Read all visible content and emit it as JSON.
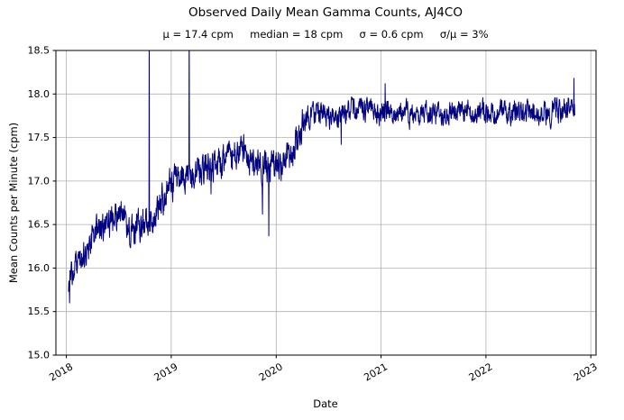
{
  "figure": {
    "title": "Observed Daily Mean Gamma Counts, AJ4CO",
    "subtitle": "μ = 17.4 cpm     median = 18 cpm     σ = 0.6 cpm     σ/μ = 3%"
  },
  "chart_data": {
    "type": "line",
    "title": "Observed Daily Mean Gamma Counts, AJ4CO",
    "subtitle": "μ = 17.4 cpm     median = 18 cpm     σ = 0.6 cpm     σ/μ = 3%",
    "stats": {
      "mu_cpm": 17.4,
      "median_cpm": 18,
      "sigma_cpm": 0.6,
      "sigma_over_mu_pct": 3
    },
    "xlabel": "Date",
    "ylabel": "Mean Counts per Minute (cpm)",
    "xlim": [
      2017.9,
      2023.05
    ],
    "ylim": [
      15.0,
      18.5
    ],
    "x_ticks": [
      2018,
      2019,
      2020,
      2021,
      2022,
      2023
    ],
    "y_ticks": [
      15.0,
      15.5,
      16.0,
      16.5,
      17.0,
      17.5,
      18.0,
      18.5
    ],
    "grid": true,
    "legend": "none",
    "line_color": "#000080",
    "grid_color": "#b0b0b0",
    "x_start": 2018.02,
    "x_end": 2022.85,
    "points_per_year": 365,
    "noise_sigma_early": 0.1,
    "noise_sigma_late": 0.075,
    "noise_change_x": 2020.3,
    "trend": [
      [
        2018.02,
        15.82
      ],
      [
        2018.05,
        15.95
      ],
      [
        2018.08,
        16.02
      ],
      [
        2018.12,
        16.07
      ],
      [
        2018.16,
        16.12
      ],
      [
        2018.2,
        16.23
      ],
      [
        2018.25,
        16.34
      ],
      [
        2018.3,
        16.42
      ],
      [
        2018.35,
        16.4
      ],
      [
        2018.4,
        16.5
      ],
      [
        2018.45,
        16.58
      ],
      [
        2018.5,
        16.65
      ],
      [
        2018.55,
        16.55
      ],
      [
        2018.6,
        16.38
      ],
      [
        2018.65,
        16.42
      ],
      [
        2018.7,
        16.45
      ],
      [
        2018.75,
        16.52
      ],
      [
        2018.8,
        16.57
      ],
      [
        2018.85,
        16.63
      ],
      [
        2018.9,
        16.74
      ],
      [
        2018.95,
        16.88
      ],
      [
        2019.0,
        16.95
      ],
      [
        2019.05,
        17.0
      ],
      [
        2019.1,
        17.02
      ],
      [
        2019.15,
        17.04
      ],
      [
        2019.2,
        17.06
      ],
      [
        2019.25,
        17.1
      ],
      [
        2019.3,
        17.14
      ],
      [
        2019.35,
        17.15
      ],
      [
        2019.4,
        17.16
      ],
      [
        2019.45,
        17.2
      ],
      [
        2019.5,
        17.21
      ],
      [
        2019.55,
        17.25
      ],
      [
        2019.6,
        17.3
      ],
      [
        2019.65,
        17.36
      ],
      [
        2019.7,
        17.3
      ],
      [
        2019.75,
        17.22
      ],
      [
        2019.8,
        17.18
      ],
      [
        2019.85,
        17.2
      ],
      [
        2019.9,
        17.16
      ],
      [
        2019.95,
        17.2
      ],
      [
        2020.0,
        17.2
      ],
      [
        2020.05,
        17.16
      ],
      [
        2020.1,
        17.24
      ],
      [
        2020.15,
        17.32
      ],
      [
        2020.2,
        17.45
      ],
      [
        2020.25,
        17.65
      ],
      [
        2020.3,
        17.74
      ],
      [
        2020.4,
        17.78
      ],
      [
        2020.5,
        17.77
      ],
      [
        2020.6,
        17.76
      ],
      [
        2020.7,
        17.78
      ],
      [
        2020.8,
        17.8
      ],
      [
        2020.9,
        17.78
      ],
      [
        2021.0,
        17.8
      ],
      [
        2021.1,
        17.82
      ],
      [
        2021.2,
        17.78
      ],
      [
        2021.3,
        17.76
      ],
      [
        2021.4,
        17.8
      ],
      [
        2021.5,
        17.78
      ],
      [
        2021.6,
        17.76
      ],
      [
        2021.7,
        17.8
      ],
      [
        2021.8,
        17.78
      ],
      [
        2021.9,
        17.76
      ],
      [
        2022.0,
        17.8
      ],
      [
        2022.1,
        17.78
      ],
      [
        2022.2,
        17.76
      ],
      [
        2022.3,
        17.8
      ],
      [
        2022.4,
        17.78
      ],
      [
        2022.5,
        17.76
      ],
      [
        2022.6,
        17.8
      ],
      [
        2022.7,
        17.8
      ],
      [
        2022.85,
        17.85
      ]
    ],
    "spikes": [
      [
        2018.03,
        15.6
      ],
      [
        2018.79,
        19.3
      ],
      [
        2019.17,
        19.0
      ],
      [
        2019.38,
        16.85
      ],
      [
        2019.87,
        16.62
      ],
      [
        2019.93,
        16.37
      ],
      [
        2020.62,
        17.42
      ],
      [
        2021.04,
        18.12
      ],
      [
        2022.84,
        18.18
      ]
    ]
  }
}
